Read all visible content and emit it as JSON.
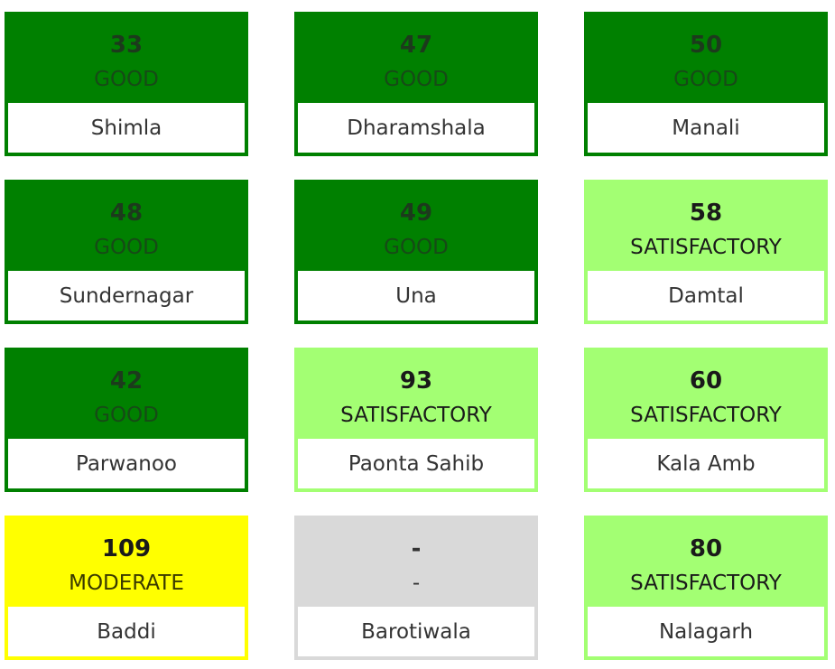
{
  "stations": [
    {
      "aqi": "33",
      "category": "GOOD",
      "city": "Shimla",
      "status": "good"
    },
    {
      "aqi": "47",
      "category": "GOOD",
      "city": "Dharamshala",
      "status": "good"
    },
    {
      "aqi": "50",
      "category": "GOOD",
      "city": "Manali",
      "status": "good"
    },
    {
      "aqi": "48",
      "category": "GOOD",
      "city": "Sundernagar",
      "status": "good"
    },
    {
      "aqi": "49",
      "category": "GOOD",
      "city": "Una",
      "status": "good"
    },
    {
      "aqi": "58",
      "category": "SATISFACTORY",
      "city": "Damtal",
      "status": "satisfactory"
    },
    {
      "aqi": "42",
      "category": "GOOD",
      "city": "Parwanoo",
      "status": "good"
    },
    {
      "aqi": "93",
      "category": "SATISFACTORY",
      "city": "Paonta Sahib",
      "status": "satisfactory"
    },
    {
      "aqi": "60",
      "category": "SATISFACTORY",
      "city": "Kala Amb",
      "status": "satisfactory"
    },
    {
      "aqi": "109",
      "category": "MODERATE",
      "city": "Baddi",
      "status": "moderate"
    },
    {
      "aqi": "-",
      "category": "-",
      "city": "Barotiwala",
      "status": "nodata"
    },
    {
      "aqi": "80",
      "category": "SATISFACTORY",
      "city": "Nalagarh",
      "status": "satisfactory"
    }
  ],
  "colors": {
    "good": "#008000",
    "satisfactory": "#a3ff73",
    "moderate": "#ffff00",
    "nodata": "#d9d9d9"
  }
}
